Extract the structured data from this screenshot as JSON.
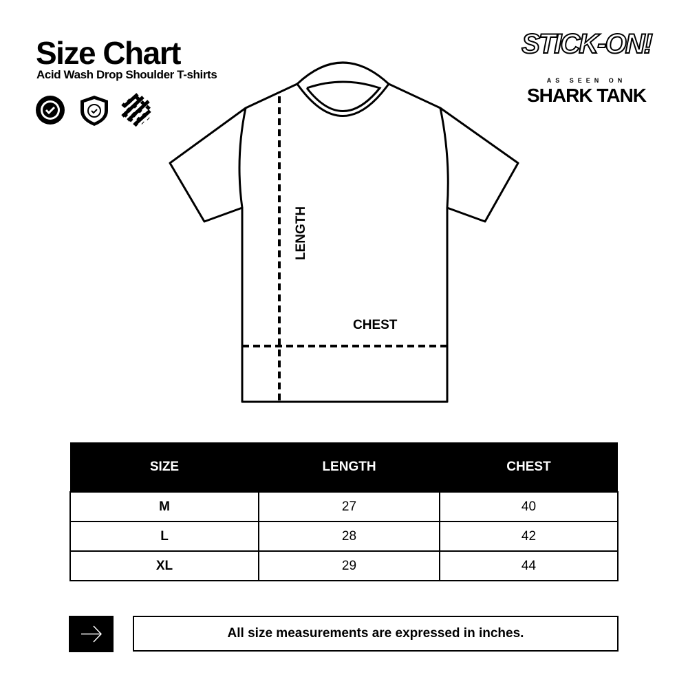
{
  "header": {
    "title": "Size Chart",
    "subtitle": "Acid  Wash Drop Shoulder T-shirts"
  },
  "badges": [
    "verified-badge-icon",
    "shield-check-icon",
    "fabric-weave-icon"
  ],
  "brand": {
    "logo_text": "STICK-ON!",
    "tagline": "AS SEEN ON",
    "show": "SHARK TANK"
  },
  "diagram": {
    "length_label": "LENGTH",
    "chest_label": "CHEST"
  },
  "table": {
    "headers": [
      "SIZE",
      "LENGTH",
      "CHEST"
    ],
    "rows": [
      [
        "M",
        "27",
        "40"
      ],
      [
        "L",
        "28",
        "42"
      ],
      [
        "XL",
        "29",
        "44"
      ]
    ]
  },
  "note": "All size measurements are expressed in inches."
}
